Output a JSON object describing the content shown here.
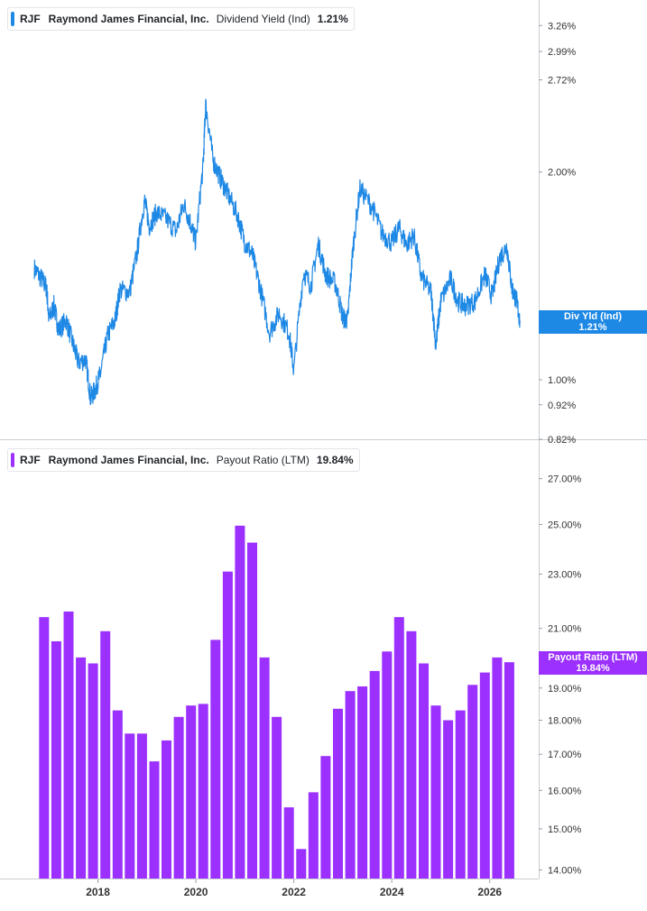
{
  "panels": [
    {
      "ticker": "RJF",
      "company": "Raymond James Financial, Inc.",
      "metric": "Dividend Yield (Ind)",
      "value": "1.21%",
      "tag_line1": "Div Yld (Ind)",
      "tag_line2": "1.21%",
      "color": "#1e88e5"
    },
    {
      "ticker": "RJF",
      "company": "Raymond James Financial, Inc.",
      "metric": "Payout Ratio (LTM)",
      "value": "19.84%",
      "tag_line1": "Payout Ratio (LTM)",
      "tag_line2": "19.84%",
      "color": "#9b30ff"
    }
  ],
  "x_ticks": [
    "2018",
    "2020",
    "2022",
    "2024",
    "2026"
  ],
  "chart_data": [
    {
      "type": "line",
      "series": [
        {
          "name": "Dividend Yield (Ind)",
          "x": [
            2016.7,
            2016.85,
            2016.95,
            2017.0,
            2017.1,
            2017.2,
            2017.35,
            2017.5,
            2017.6,
            2017.75,
            2017.85,
            2017.95,
            2018.05,
            2018.2,
            2018.35,
            2018.45,
            2018.65,
            2018.8,
            2018.95,
            2019.05,
            2019.2,
            2019.4,
            2019.6,
            2019.75,
            2019.9,
            2020.0,
            2020.15,
            2020.2,
            2020.35,
            2020.5,
            2020.65,
            2020.85,
            2021.0,
            2021.15,
            2021.3,
            2021.5,
            2021.7,
            2021.9,
            2022.0,
            2022.2,
            2022.35,
            2022.5,
            2022.65,
            2022.85,
            2023.0,
            2023.1,
            2023.2,
            2023.35,
            2023.6,
            2023.8,
            2024.0,
            2024.15,
            2024.3,
            2024.45,
            2024.6,
            2024.8,
            2024.9,
            2025.0,
            2025.2,
            2025.35,
            2025.5,
            2025.7,
            2025.9,
            2026.05,
            2026.2,
            2026.35,
            2026.45,
            2026.55,
            2026.62
          ],
          "values": [
            1.45,
            1.4,
            1.36,
            1.22,
            1.28,
            1.18,
            1.22,
            1.12,
            1.06,
            1.07,
            0.94,
            0.97,
            1.02,
            1.16,
            1.22,
            1.35,
            1.34,
            1.53,
            1.82,
            1.67,
            1.75,
            1.71,
            1.64,
            1.8,
            1.68,
            1.58,
            2.05,
            2.5,
            2.08,
            1.96,
            1.86,
            1.73,
            1.58,
            1.52,
            1.37,
            1.17,
            1.25,
            1.17,
            1.03,
            1.43,
            1.37,
            1.57,
            1.42,
            1.38,
            1.23,
            1.22,
            1.53,
            1.89,
            1.78,
            1.63,
            1.58,
            1.66,
            1.57,
            1.62,
            1.41,
            1.34,
            1.12,
            1.3,
            1.4,
            1.3,
            1.28,
            1.3,
            1.42,
            1.32,
            1.5,
            1.56,
            1.36,
            1.3,
            1.21
          ]
        }
      ],
      "y_ticks": [
        "0.82%",
        "0.92%",
        "1.00%",
        "2.00%",
        "2.72%",
        "2.99%",
        "3.26%"
      ],
      "y_scale": "log",
      "ylim": [
        0.82,
        3.55
      ],
      "xlim": [
        2016.0,
        2027.0
      ],
      "grid": false,
      "legend": "top-left"
    },
    {
      "type": "bar",
      "series": [
        {
          "name": "Payout Ratio (LTM)",
          "x": [
            2016.9,
            2017.15,
            2017.4,
            2017.65,
            2017.9,
            2018.15,
            2018.4,
            2018.65,
            2018.9,
            2019.15,
            2019.4,
            2019.65,
            2019.9,
            2020.15,
            2020.4,
            2020.65,
            2020.9,
            2021.15,
            2021.4,
            2021.65,
            2021.9,
            2022.15,
            2022.4,
            2022.65,
            2022.9,
            2023.15,
            2023.4,
            2023.65,
            2023.9,
            2024.15,
            2024.4,
            2024.65,
            2024.9,
            2025.15,
            2025.4,
            2025.65,
            2025.9,
            2026.15,
            2026.4
          ],
          "values": [
            21.4,
            20.55,
            21.6,
            20.0,
            19.8,
            20.9,
            18.3,
            17.6,
            17.6,
            16.8,
            17.4,
            18.1,
            18.45,
            18.5,
            20.6,
            23.1,
            24.95,
            24.25,
            20.0,
            18.1,
            15.55,
            14.5,
            15.95,
            16.95,
            18.35,
            18.9,
            19.05,
            19.55,
            20.2,
            21.4,
            20.9,
            19.8,
            18.45,
            18.0,
            18.3,
            19.1,
            19.5,
            20.0,
            19.84
          ]
        }
      ],
      "y_ticks": [
        "14.00%",
        "15.00%",
        "16.00%",
        "17.00%",
        "18.00%",
        "19.00%",
        "21.00%",
        "23.00%",
        "25.00%",
        "27.00%"
      ],
      "y_scale": "log",
      "ylim": [
        13.8,
        28.8
      ],
      "xlim": [
        2016.0,
        2027.0
      ],
      "grid": false,
      "legend": "top-left"
    }
  ]
}
